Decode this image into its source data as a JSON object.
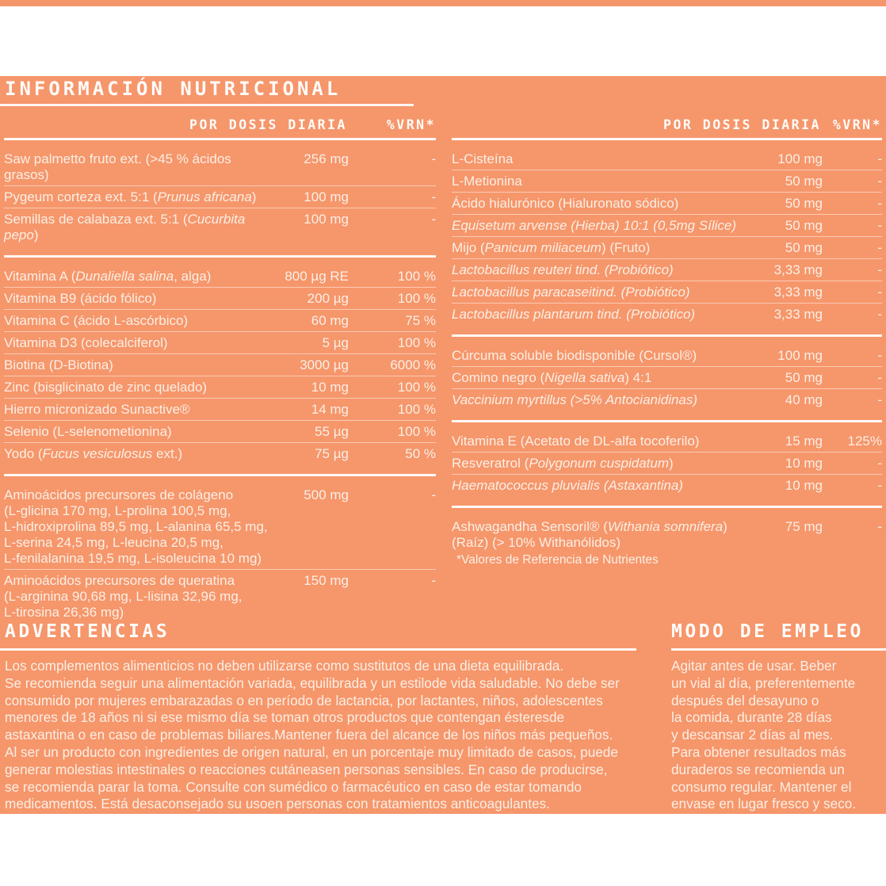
{
  "colors": {
    "panel_bg": "#f6966b",
    "body_text": "#fbefe4",
    "title_text": "#fefcfa"
  },
  "title": "INFORMACIÓN NUTRICIONAL",
  "columns": {
    "dose": "POR DOSIS DIARIA",
    "vrn": "%VRN*"
  },
  "tables": [
    {
      "id": "table-left",
      "name": "nutrition-table-left",
      "sections": [
        {
          "rows": [
            {
              "name": "Saw palmetto fruto ext. (>45 % ácidos grasos)",
              "amount": "256 mg",
              "vrn": "-"
            },
            {
              "name": "Pygeum corteza ext. 5:1 (*Prunus africana*)",
              "amount": "100 mg",
              "vrn": "-"
            },
            {
              "name": "Semillas de calabaza ext. 5:1 (*Cucurbita pepo*)",
              "amount": "100 mg",
              "vrn": "-"
            }
          ]
        },
        {
          "rows": [
            {
              "name": "Vitamina A (*Dunaliella salina*, alga)",
              "amount": "800 µg RE",
              "vrn": "100 %"
            },
            {
              "name": "Vitamina B9 (ácido fólico)",
              "amount": "200 µg",
              "vrn": "100 %"
            },
            {
              "name": "Vitamina C (ácido L-ascórbico)",
              "amount": "60 mg",
              "vrn": "75 %"
            },
            {
              "name": "Vitamina D3 (colecalciferol)",
              "amount": "5 µg",
              "vrn": "100 %"
            },
            {
              "name": "Biotina (D-Biotina)",
              "amount": "3000 µg",
              "vrn": "6000 %"
            },
            {
              "name": "Zinc (bisglicinato de zinc quelado)",
              "amount": "10 mg",
              "vrn": "100 %"
            },
            {
              "name": "Hierro micronizado Sunactive®",
              "amount": "14 mg",
              "vrn": "100 %"
            },
            {
              "name": "Selenio (L-selenometionina)",
              "amount": "55 µg",
              "vrn": "100 %"
            },
            {
              "name": "Yodo (*Fucus vesiculosus* ext.)",
              "amount": "75 µg",
              "vrn": "50 %"
            }
          ]
        },
        {
          "rows": [
            {
              "name": "Aminoácidos precursores de colágeno\n(L-glicina 170 mg, L-prolina 100,5 mg,\nL-hidroxiprolina 89,5 mg, L-alanina 65,5 mg,\nL-serina 24,5 mg, L-leucina 20,5 mg,\nL-fenilalanina 19,5 mg, L-isoleucina 10 mg)",
              "amount": "500 mg",
              "vrn": "-"
            },
            {
              "name": "Aminoácidos precursores de queratina\n(L-arginina 90,68 mg, L-lisina 32,96 mg,\nL-tirosina 26,36 mg)",
              "amount": "150 mg",
              "vrn": "-"
            }
          ]
        }
      ]
    },
    {
      "id": "table-right",
      "name": "nutrition-table-right",
      "sections": [
        {
          "rows": [
            {
              "name": "L-Cisteína",
              "amount": "100 mg",
              "vrn": "-"
            },
            {
              "name": "L-Metionina",
              "amount": "50 mg",
              "vrn": "-"
            },
            {
              "name": "Ácido hialurónico (Hialuronato sódico)",
              "amount": "50 mg",
              "vrn": "-"
            },
            {
              "name": "*Equisetum arvense (Hierba) 10:1 (0,5mg Sílice)*",
              "amount": "50 mg",
              "vrn": "-"
            },
            {
              "name": "Mijo (*Panicum miliaceum*) (Fruto)",
              "amount": "50 mg",
              "vrn": "-"
            },
            {
              "name": "*Lactobacillus reuteri tind. (Probiótico)*",
              "amount": "3,33 mg",
              "vrn": "-"
            },
            {
              "name": "*Lactobacillus paracaseitind. (Probiótico)*",
              "amount": "3,33 mg",
              "vrn": "-"
            },
            {
              "name": "*Lactobacillus plantarum tind. (Probiótico)*",
              "amount": "3,33 mg",
              "vrn": "-"
            }
          ]
        },
        {
          "rows": [
            {
              "name": "Cúrcuma soluble biodisponible (Cursol®)",
              "amount": "100 mg",
              "vrn": "-"
            },
            {
              "name": "Comino negro (*Nigella sativa*) 4:1",
              "amount": "50 mg",
              "vrn": "-"
            },
            {
              "name": "*Vaccinium myrtillus (>5% Antocianidinas)*",
              "amount": "40 mg",
              "vrn": "-"
            }
          ]
        },
        {
          "rows": [
            {
              "name": "Vitamina E (Acetato de DL-alfa tocoferilo)",
              "amount": "15 mg",
              "vrn": "125%"
            },
            {
              "name": "Resveratrol (*Polygonum cuspidatum*)",
              "amount": "10 mg",
              "vrn": "-"
            },
            {
              "name": "*Haematococcus pluvialis (Astaxantina)*",
              "amount": "10 mg",
              "vrn": "-"
            }
          ]
        },
        {
          "rows": [
            {
              "name": "Ashwagandha Sensoril® (*Withania somnifera*)\n(Raíz) (> 10% Withanólidos)",
              "amount": "75 mg",
              "vrn": "-"
            }
          ]
        }
      ]
    }
  ],
  "footnote": "*Valores de Referencia de Nutrientes",
  "advertencias": {
    "title": "ADVERTENCIAS",
    "lines": [
      "Los complementos alimenticios no deben utilizarse como sustitutos de una dieta equilibrada.",
      "Se recomienda seguir una alimentación variada, equilibrada y un estilode vida saludable. No debe ser",
      "consumido por mujeres embarazadas o en período de lactancia, por lactantes, niños, adolescentes",
      "menores de 18 años ni si ese mismo día se toman otros productos que contengan ésteresde",
      "astaxantina o en caso de problemas biliares.Mantener fuera del alcance de los niños más pequeños.",
      "Al ser un producto con ingredientes de origen natural, en un porcentaje muy limitado de casos, puede",
      "generar molestias intestinales o reacciones cutáneasen personas sensibles. En caso de producirse,",
      "se recomienda parar la toma. Consulte con sumédico o farmacéutico en caso de estar tomando",
      "medicamentos. Está desaconsejado su usoen personas con tratamientos anticoagulantes."
    ]
  },
  "modo_de_empleo": {
    "title": "MODO DE EMPLEO",
    "lines": [
      "Agitar antes de usar. Beber",
      "un vial al día, preferentemente",
      "después del desayuno o",
      "la comida, durante 28 días",
      "y descansar 2 días al mes.",
      "Para obtener resultados más",
      "duraderos se recomienda un",
      "consumo regular. Mantener el",
      "envase en lugar fresco y seco."
    ]
  }
}
